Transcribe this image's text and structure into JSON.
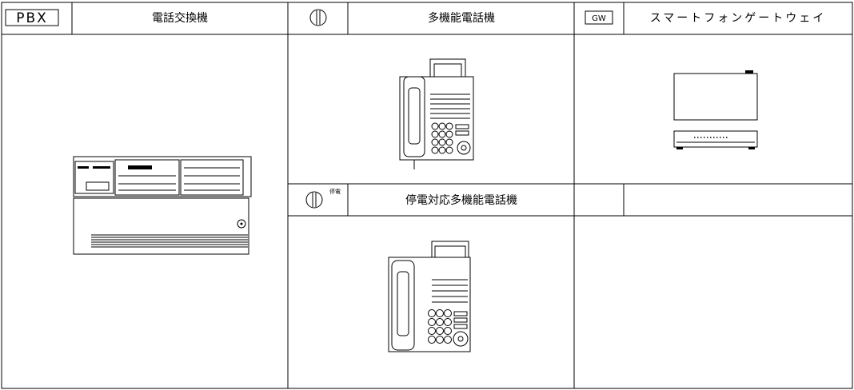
{
  "row_1": [
    {
      "symbol": "PBX",
      "label": "電話交換機"
    },
    {
      "label": "多機能電話機"
    },
    {
      "symbol": "GW",
      "label": "スマートフォンゲートウェイ"
    }
  ],
  "row_2": [
    {
      "symbol": "停電",
      "label": "停電対応多機能電話機"
    }
  ]
}
